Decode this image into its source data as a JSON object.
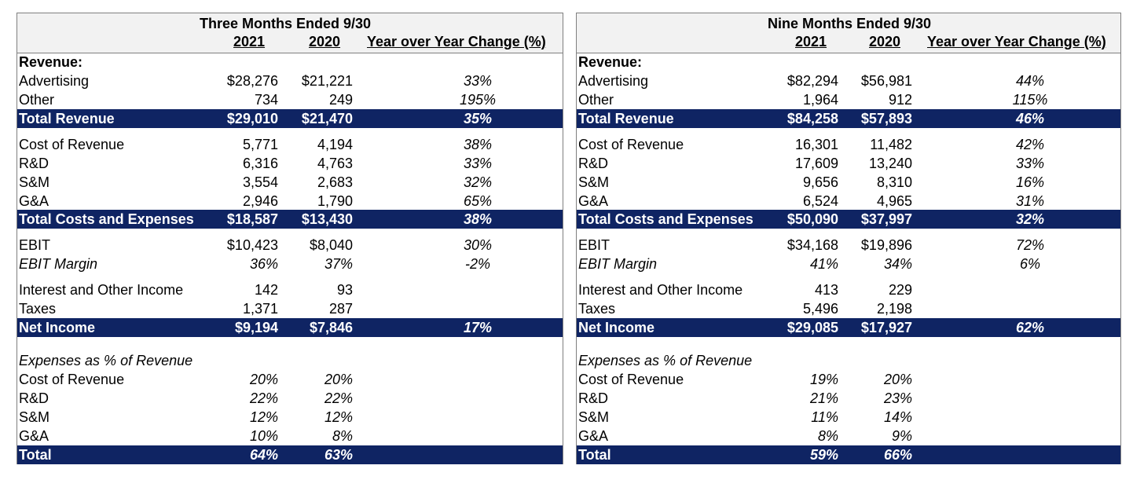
{
  "tables": [
    {
      "period": "Three Months Ended 9/30",
      "col_2021": "2021",
      "col_2020": "2020",
      "col_change": "Year over Year Change (%)",
      "rows": [
        {
          "label": "Revenue:",
          "v2021": "",
          "v2020": "",
          "yoy": ""
        },
        {
          "label": "Advertising",
          "v2021": "$28,276",
          "v2020": "$21,221",
          "yoy": "33%"
        },
        {
          "label": "Other",
          "v2021": "734",
          "v2020": "249",
          "yoy": "195%"
        },
        {
          "label": "Total Revenue",
          "v2021": "$29,010",
          "v2020": "$21,470",
          "yoy": "35%"
        },
        {
          "label": "Cost of Revenue",
          "v2021": "5,771",
          "v2020": "4,194",
          "yoy": "38%"
        },
        {
          "label": "R&D",
          "v2021": "6,316",
          "v2020": "4,763",
          "yoy": "33%"
        },
        {
          "label": "S&M",
          "v2021": "3,554",
          "v2020": "2,683",
          "yoy": "32%"
        },
        {
          "label": "G&A",
          "v2021": "2,946",
          "v2020": "1,790",
          "yoy": "65%"
        },
        {
          "label": "Total Costs and Expenses",
          "v2021": "$18,587",
          "v2020": "$13,430",
          "yoy": "38%"
        },
        {
          "label": "EBIT",
          "v2021": "$10,423",
          "v2020": "$8,040",
          "yoy": "30%"
        },
        {
          "label": "EBIT Margin",
          "v2021": "36%",
          "v2020": "37%",
          "yoy": "-2%"
        },
        {
          "label": "Interest and Other Income",
          "v2021": "142",
          "v2020": "93",
          "yoy": ""
        },
        {
          "label": "Taxes",
          "v2021": "1,371",
          "v2020": "287",
          "yoy": ""
        },
        {
          "label": "Net Income",
          "v2021": "$9,194",
          "v2020": "$7,846",
          "yoy": "17%"
        },
        {
          "label": "Expenses as % of Revenue",
          "v2021": "",
          "v2020": "",
          "yoy": ""
        },
        {
          "label": "Cost of Revenue",
          "v2021": "20%",
          "v2020": "20%",
          "yoy": ""
        },
        {
          "label": "R&D",
          "v2021": "22%",
          "v2020": "22%",
          "yoy": ""
        },
        {
          "label": "S&M",
          "v2021": "12%",
          "v2020": "12%",
          "yoy": ""
        },
        {
          "label": "G&A",
          "v2021": "10%",
          "v2020": "8%",
          "yoy": ""
        },
        {
          "label": "Total",
          "v2021": "64%",
          "v2020": "63%",
          "yoy": ""
        }
      ]
    },
    {
      "period": "Nine Months Ended 9/30",
      "col_2021": "2021",
      "col_2020": "2020",
      "col_change": "Year over Year Change (%)",
      "rows": [
        {
          "label": "Revenue:",
          "v2021": "",
          "v2020": "",
          "yoy": ""
        },
        {
          "label": "Advertising",
          "v2021": "$82,294",
          "v2020": "$56,981",
          "yoy": "44%"
        },
        {
          "label": "Other",
          "v2021": "1,964",
          "v2020": "912",
          "yoy": "115%"
        },
        {
          "label": "Total Revenue",
          "v2021": "$84,258",
          "v2020": "$57,893",
          "yoy": "46%"
        },
        {
          "label": "Cost of Revenue",
          "v2021": "16,301",
          "v2020": "11,482",
          "yoy": "42%"
        },
        {
          "label": "R&D",
          "v2021": "17,609",
          "v2020": "13,240",
          "yoy": "33%"
        },
        {
          "label": "S&M",
          "v2021": "9,656",
          "v2020": "8,310",
          "yoy": "16%"
        },
        {
          "label": "G&A",
          "v2021": "6,524",
          "v2020": "4,965",
          "yoy": "31%"
        },
        {
          "label": "Total Costs and Expenses",
          "v2021": "$50,090",
          "v2020": "$37,997",
          "yoy": "32%"
        },
        {
          "label": "EBIT",
          "v2021": "$34,168",
          "v2020": "$19,896",
          "yoy": "72%"
        },
        {
          "label": "EBIT Margin",
          "v2021": "41%",
          "v2020": "34%",
          "yoy": "6%"
        },
        {
          "label": "Interest and Other Income",
          "v2021": "413",
          "v2020": "229",
          "yoy": ""
        },
        {
          "label": "Taxes",
          "v2021": "5,496",
          "v2020": "2,198",
          "yoy": ""
        },
        {
          "label": "Net Income",
          "v2021": "$29,085",
          "v2020": "$17,927",
          "yoy": "62%"
        },
        {
          "label": "Expenses as % of Revenue",
          "v2021": "",
          "v2020": "",
          "yoy": ""
        },
        {
          "label": "Cost of Revenue",
          "v2021": "19%",
          "v2020": "20%",
          "yoy": ""
        },
        {
          "label": "R&D",
          "v2021": "21%",
          "v2020": "23%",
          "yoy": ""
        },
        {
          "label": "S&M",
          "v2021": "11%",
          "v2020": "14%",
          "yoy": ""
        },
        {
          "label": "G&A",
          "v2021": "8%",
          "v2020": "9%",
          "yoy": ""
        },
        {
          "label": "Total",
          "v2021": "59%",
          "v2020": "66%",
          "yoy": ""
        }
      ]
    }
  ],
  "colors": {
    "band": "#0f2463",
    "header_bg": "#f2f2f2"
  }
}
